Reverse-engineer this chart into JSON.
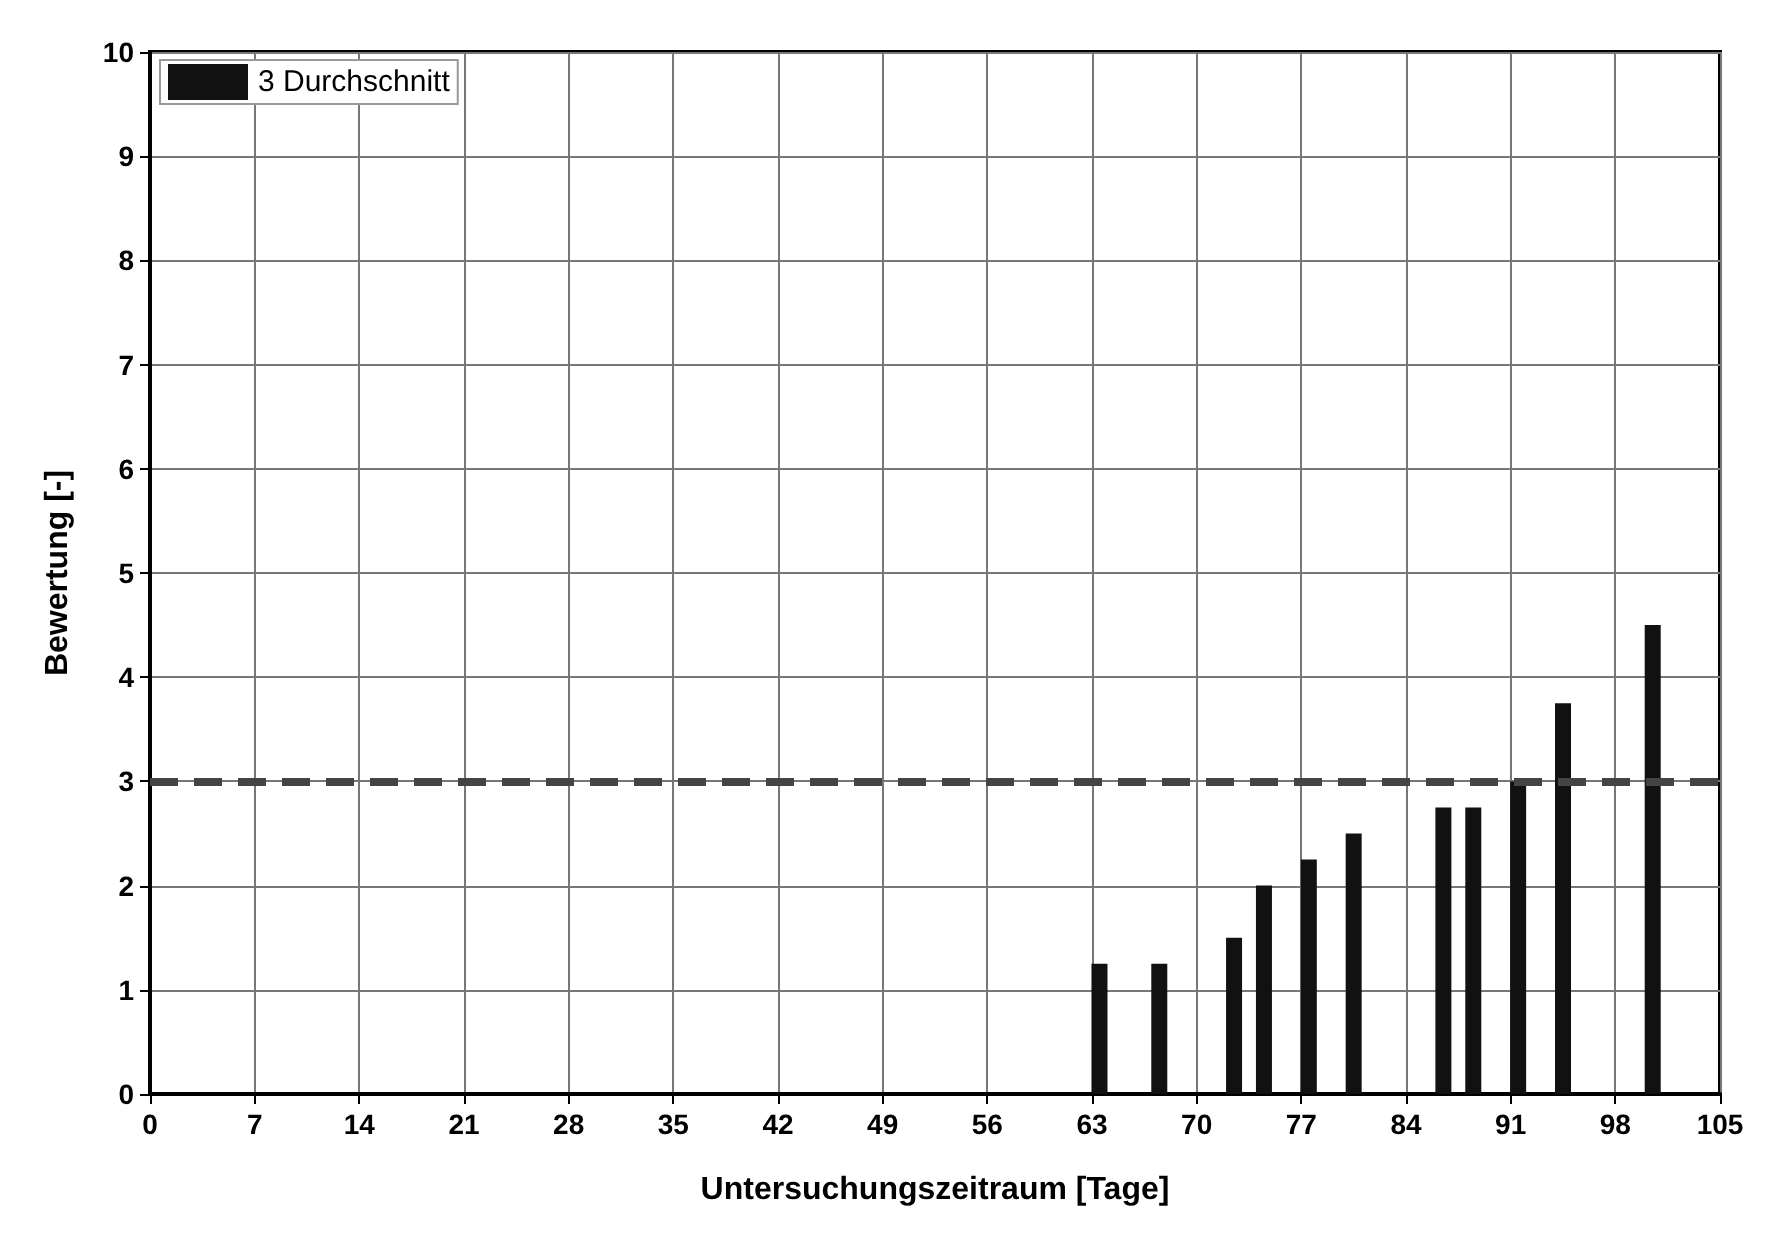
{
  "chart_data": {
    "type": "bar",
    "xlabel": "Untersuchungszeitraum [Tage]",
    "ylabel": "Bewertung [-]",
    "x": [
      63.5,
      67.5,
      72.5,
      74.5,
      77.5,
      80.5,
      86.5,
      88.5,
      91.5,
      94.5,
      100.5
    ],
    "series": [
      {
        "name": "3 Durchschnitt",
        "color": "#111111",
        "values": [
          1.25,
          1.25,
          1.5,
          2,
          2.25,
          2.5,
          2.75,
          2.75,
          3,
          3.75,
          4.5
        ]
      }
    ],
    "xlim": [
      0,
      105
    ],
    "xticks": [
      0,
      7,
      14,
      21,
      28,
      35,
      42,
      49,
      56,
      63,
      70,
      77,
      84,
      91,
      98,
      105
    ],
    "ylim": [
      0,
      10
    ],
    "yticks": [
      0,
      1,
      2,
      3,
      4,
      5,
      6,
      7,
      8,
      9,
      10
    ],
    "ref_lines": [
      {
        "axis": "y",
        "value": 3,
        "color": "#444444",
        "line_style": "dashed"
      }
    ],
    "grid": true,
    "legend": "top left"
  }
}
